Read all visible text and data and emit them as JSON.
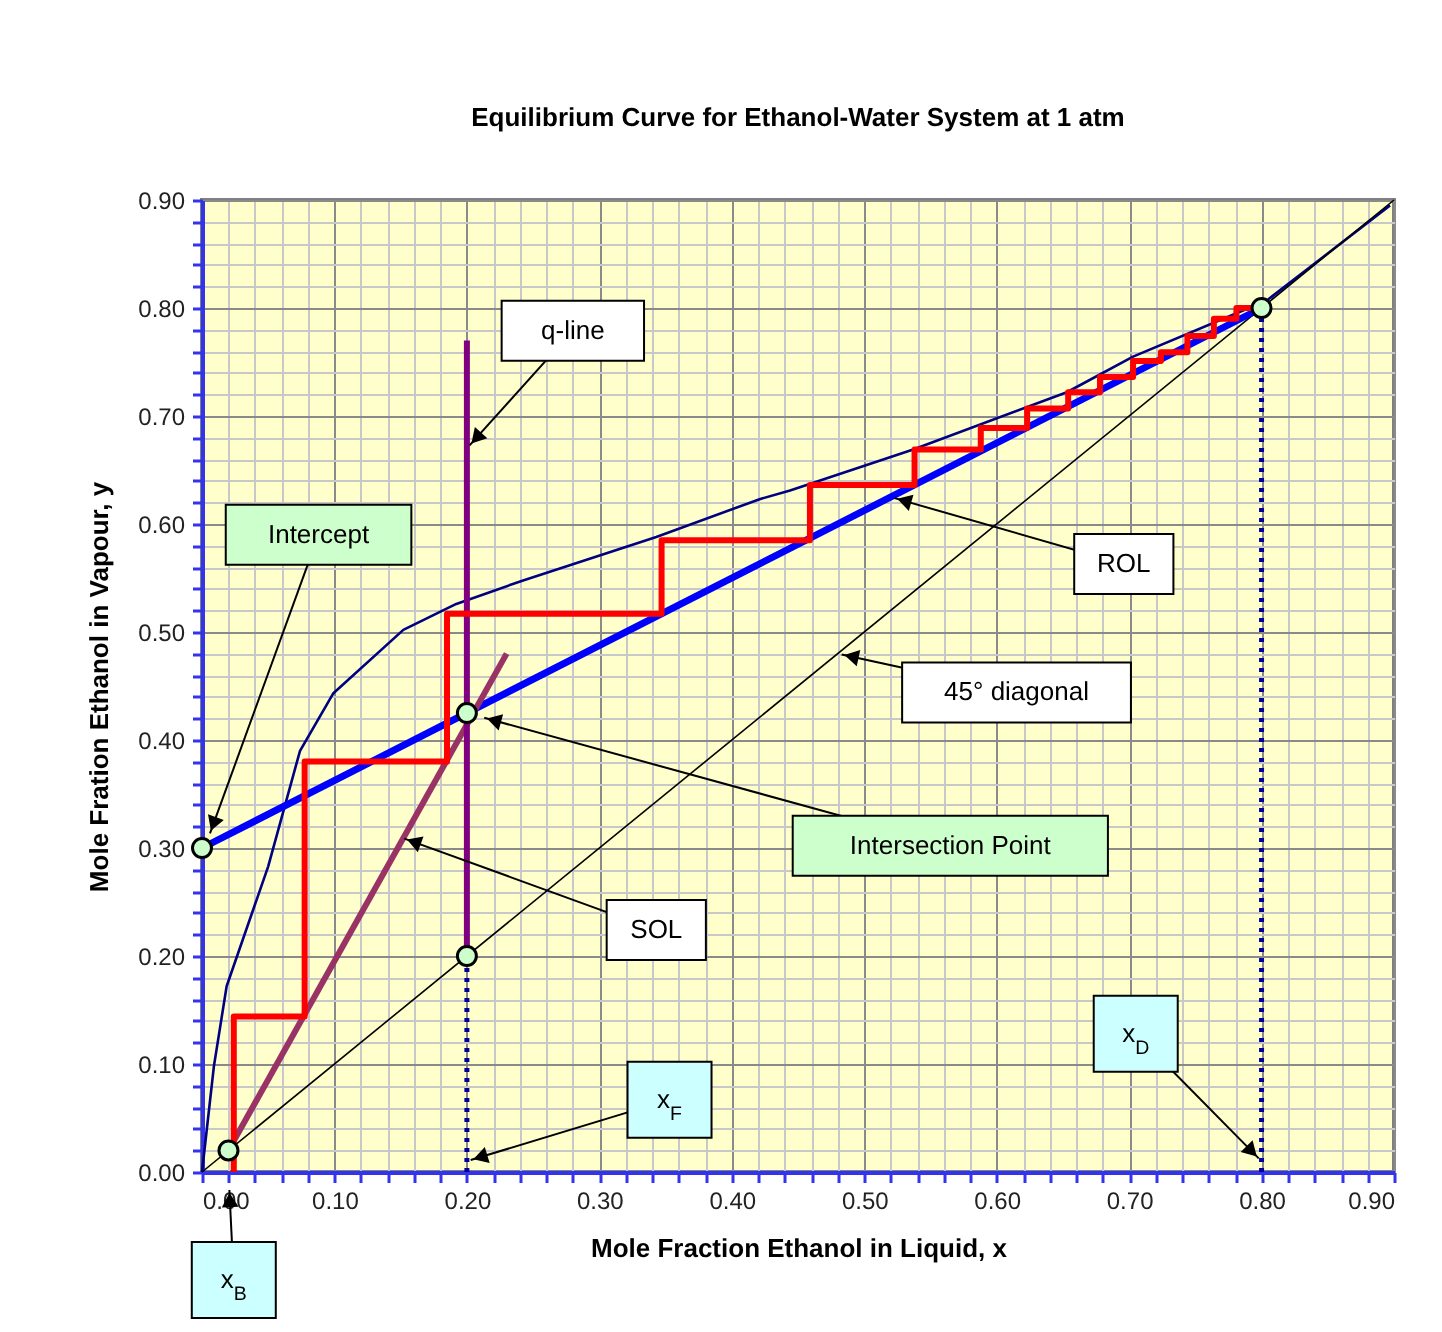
{
  "chart_data": {
    "type": "line",
    "title": "Equilibrium Curve for Ethanol-Water System at 1 atm",
    "xlabel": "Mole Fraction Ethanol in Liquid, x",
    "ylabel": "Mole Fration Ethanol in Vapour, y",
    "xlim": [
      0,
      0.9
    ],
    "ylim": [
      0,
      0.9
    ],
    "xticks": [
      {
        "value": 0,
        "label": "0.00"
      },
      {
        "value": 0.02,
        "label": null
      },
      {
        "value": 0.04,
        "label": null
      },
      {
        "value": 0.06,
        "label": null
      },
      {
        "value": 0.08,
        "label": null
      },
      {
        "value": 0.1,
        "label": "0.10"
      },
      {
        "value": 0.12,
        "label": null
      },
      {
        "value": 0.14,
        "label": null
      },
      {
        "value": 0.16,
        "label": null
      },
      {
        "value": 0.18,
        "label": null
      },
      {
        "value": 0.2,
        "label": "0.20"
      },
      {
        "value": 0.22,
        "label": null
      },
      {
        "value": 0.24,
        "label": null
      },
      {
        "value": 0.26,
        "label": null
      },
      {
        "value": 0.28,
        "label": null
      },
      {
        "value": 0.3,
        "label": "0.30"
      },
      {
        "value": 0.32,
        "label": null
      },
      {
        "value": 0.34,
        "label": null
      },
      {
        "value": 0.36,
        "label": null
      },
      {
        "value": 0.38,
        "label": null
      },
      {
        "value": 0.4,
        "label": "0.40"
      },
      {
        "value": 0.42,
        "label": null
      },
      {
        "value": 0.44,
        "label": null
      },
      {
        "value": 0.46,
        "label": null
      },
      {
        "value": 0.48,
        "label": null
      },
      {
        "value": 0.5,
        "label": "0.50"
      },
      {
        "value": 0.52,
        "label": null
      },
      {
        "value": 0.54,
        "label": null
      },
      {
        "value": 0.56,
        "label": null
      },
      {
        "value": 0.58,
        "label": null
      },
      {
        "value": 0.6,
        "label": "0.60"
      },
      {
        "value": 0.62,
        "label": null
      },
      {
        "value": 0.64,
        "label": null
      },
      {
        "value": 0.66,
        "label": null
      },
      {
        "value": 0.68,
        "label": null
      },
      {
        "value": 0.7,
        "label": "0.70"
      },
      {
        "value": 0.72,
        "label": null
      },
      {
        "value": 0.74,
        "label": null
      },
      {
        "value": 0.76,
        "label": null
      },
      {
        "value": 0.78,
        "label": null
      },
      {
        "value": 0.8,
        "label": "0.80"
      },
      {
        "value": 0.82,
        "label": null
      },
      {
        "value": 0.84,
        "label": null
      },
      {
        "value": 0.86,
        "label": null
      },
      {
        "value": 0.88,
        "label": null
      },
      {
        "value": 0.9,
        "label": "0.90"
      }
    ],
    "yticks": [
      {
        "value": 0,
        "label": "0.00"
      },
      {
        "value": 0.02,
        "label": null
      },
      {
        "value": 0.04,
        "label": null
      },
      {
        "value": 0.06,
        "label": null
      },
      {
        "value": 0.08,
        "label": null
      },
      {
        "value": 0.1,
        "label": "0.10"
      },
      {
        "value": 0.12,
        "label": null
      },
      {
        "value": 0.14,
        "label": null
      },
      {
        "value": 0.16,
        "label": null
      },
      {
        "value": 0.18,
        "label": null
      },
      {
        "value": 0.2,
        "label": "0.20"
      },
      {
        "value": 0.22,
        "label": null
      },
      {
        "value": 0.24,
        "label": null
      },
      {
        "value": 0.26,
        "label": null
      },
      {
        "value": 0.28,
        "label": null
      },
      {
        "value": 0.3,
        "label": "0.30"
      },
      {
        "value": 0.32,
        "label": null
      },
      {
        "value": 0.34,
        "label": null
      },
      {
        "value": 0.36,
        "label": null
      },
      {
        "value": 0.38,
        "label": null
      },
      {
        "value": 0.4,
        "label": "0.40"
      },
      {
        "value": 0.42,
        "label": null
      },
      {
        "value": 0.44,
        "label": null
      },
      {
        "value": 0.46,
        "label": null
      },
      {
        "value": 0.48,
        "label": null
      },
      {
        "value": 0.5,
        "label": "0.50"
      },
      {
        "value": 0.52,
        "label": null
      },
      {
        "value": 0.54,
        "label": null
      },
      {
        "value": 0.56,
        "label": null
      },
      {
        "value": 0.58,
        "label": null
      },
      {
        "value": 0.6,
        "label": "0.60"
      },
      {
        "value": 0.62,
        "label": null
      },
      {
        "value": 0.64,
        "label": null
      },
      {
        "value": 0.66,
        "label": null
      },
      {
        "value": 0.68,
        "label": null
      },
      {
        "value": 0.7,
        "label": "0.70"
      },
      {
        "value": 0.72,
        "label": null
      },
      {
        "value": 0.74,
        "label": null
      },
      {
        "value": 0.76,
        "label": null
      },
      {
        "value": 0.78,
        "label": null
      },
      {
        "value": 0.8,
        "label": "0.80"
      },
      {
        "value": 0.82,
        "label": null
      },
      {
        "value": 0.84,
        "label": null
      },
      {
        "value": 0.86,
        "label": null
      },
      {
        "value": 0.88,
        "label": null
      },
      {
        "value": 0.9,
        "label": "0.90"
      }
    ],
    "grid": true,
    "series": [
      {
        "color": "#000080",
        "x": [
          0,
          0.009,
          0.0186,
          0.05,
          0.074,
          0.099,
          0.152,
          0.192,
          0.243,
          0.343,
          0.421,
          0.444,
          0.537,
          0.653,
          0.703,
          0.804,
          0.897
        ],
        "values": [
          0,
          0.098,
          0.172,
          0.283,
          0.39,
          0.443,
          0.502,
          0.526,
          0.548,
          0.588,
          0.623,
          0.631,
          0.669,
          0.722,
          0.755,
          0.807,
          0.895
        ]
      },
      {
        "color": "#000000",
        "x": [
          0,
          0.9
        ],
        "values": [
          0,
          0.9
        ]
      },
      {
        "color": "#0000ff",
        "x": [
          0,
          0.8
        ],
        "values": [
          0.3,
          0.8
        ]
      },
      {
        "color": "#993366",
        "x": [
          0.02,
          0.23
        ],
        "values": [
          0.02,
          0.48
        ]
      },
      {
        "color": "#800080",
        "x": [
          0.2,
          0.2
        ],
        "values": [
          0.2,
          0.77
        ]
      },
      {
        "color": "#ff0000",
        "x": [
          0.024,
          0.024,
          0.0775,
          0.0775,
          0.185,
          0.185,
          0.347,
          0.347,
          0.459,
          0.459,
          0.538,
          0.538,
          0.588,
          0.588,
          0.623,
          0.623,
          0.654,
          0.654,
          0.678,
          0.678,
          0.703,
          0.703,
          0.724,
          0.724,
          0.744,
          0.744,
          0.764,
          0.764,
          0.781,
          0.781,
          0.8
        ],
        "values": [
          0,
          0.144,
          0.144,
          0.38,
          0.38,
          0.517,
          0.517,
          0.585,
          0.585,
          0.636,
          0.636,
          0.669,
          0.669,
          0.689,
          0.689,
          0.707,
          0.707,
          0.722,
          0.722,
          0.736,
          0.736,
          0.751,
          0.751,
          0.759,
          0.759,
          0.774,
          0.774,
          0.79,
          0.79,
          0.8,
          0.8
        ]
      },
      {
        "color": "#000099",
        "line_style": "dotted",
        "x": [
          0.2,
          0.2
        ],
        "values": [
          0,
          0.2
        ]
      },
      {
        "color": "#000099",
        "line_style": "dotted",
        "x": [
          0.8,
          0.8
        ],
        "values": [
          0,
          0.8
        ]
      },
      {
        "type": "scatter",
        "marker": "circle",
        "color": "#ccffcc",
        "x": [
          0,
          0.2,
          0.2,
          0.8,
          0.02
        ],
        "values": [
          0.3,
          0.425,
          0.2,
          0.8,
          0.02
        ]
      }
    ],
    "annotations": [
      {
        "text": "q-line",
        "x": 0.2,
        "y": 0.67
      },
      {
        "text": "Intercept",
        "x": 0.005,
        "y": 0.31
      },
      {
        "text": "ROL",
        "x": 0.52,
        "y": 0.625
      },
      {
        "text": "45° diagonal",
        "x": 0.48,
        "y": 0.48
      },
      {
        "text": "Intersection Point",
        "x": 0.2,
        "y": 0.425
      },
      {
        "text": "SOL",
        "x": 0.15,
        "y": 0.31
      },
      {
        "text": "x$_{F}$",
        "x": 0.2,
        "y": 0.01
      },
      {
        "text": "x$_{D}$",
        "x": 0.8,
        "y": 0.01
      },
      {
        "text": "x$_{B}$",
        "x": 0.02,
        "y": 0
      }
    ]
  }
}
